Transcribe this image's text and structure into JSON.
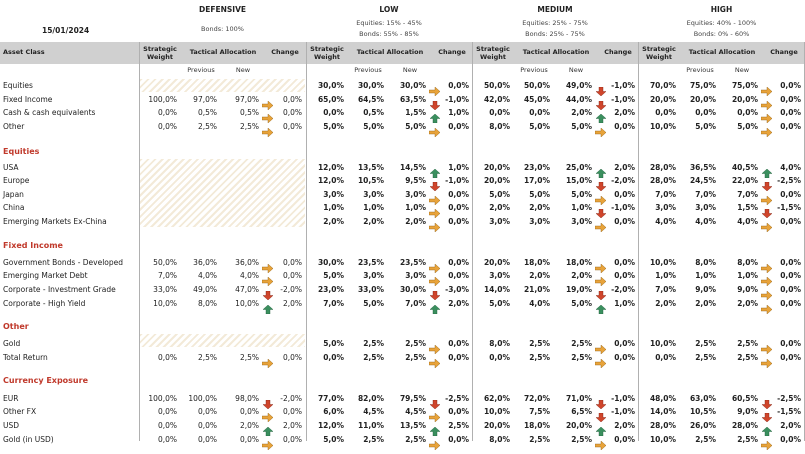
{
  "date": "15/01/2024",
  "asset_class_header": "Asset Class",
  "column_headers": {
    "strategic": "Strategic Weight",
    "tactical": "Tactical Allocation",
    "change": "Change",
    "previous": "Previous",
    "new": "New"
  },
  "profiles": [
    {
      "name": "DEFENSIVE",
      "desc": [
        "Bonds: 100%"
      ]
    },
    {
      "name": "LOW",
      "desc": [
        "Equities: 15% - 45%",
        "Bonds: 55% - 85%"
      ]
    },
    {
      "name": "MEDIUM",
      "desc": [
        "Equities: 25% - 75%",
        "Bonds: 25% - 75%"
      ]
    },
    {
      "name": "HIGH",
      "desc": [
        "Equities: 40% - 100%",
        "Bonds: 0% - 60%"
      ]
    }
  ],
  "sections": {
    "equities": "Equities",
    "fixed_income": "Fixed Income",
    "other": "Other",
    "currency": "Currency Exposure"
  },
  "colors": {
    "up": "#3a8f5e",
    "down": "#d0452b",
    "flat": "#e8a33a",
    "section": "#c0392b",
    "header_bar": "#d0d0d0"
  },
  "rows": [
    {
      "label": "Equities",
      "y": 0,
      "cells": [
        null,
        [
          "30,0%",
          "30,0%",
          "30,0%",
          "flat",
          "0,0%"
        ],
        [
          "50,0%",
          "50,0%",
          "49,0%",
          "down",
          "-1,0%"
        ],
        [
          "70,0%",
          "75,0%",
          "75,0%",
          "flat",
          "0,0%"
        ]
      ]
    },
    {
      "label": "Fixed Income",
      "y": 1,
      "cells": [
        [
          "100,0%",
          "97,0%",
          "97,0%",
          "flat",
          "0,0%"
        ],
        [
          "65,0%",
          "64,5%",
          "63,5%",
          "down",
          "-1,0%"
        ],
        [
          "42,0%",
          "45,0%",
          "44,0%",
          "down",
          "-1,0%"
        ],
        [
          "20,0%",
          "20,0%",
          "20,0%",
          "flat",
          "0,0%"
        ]
      ]
    },
    {
      "label": "Cash & cash equivalents",
      "y": 2,
      "cells": [
        [
          "0,0%",
          "0,5%",
          "0,5%",
          "flat",
          "0,0%"
        ],
        [
          "0,0%",
          "0,5%",
          "1,5%",
          "up",
          "1,0%"
        ],
        [
          "0,0%",
          "0,0%",
          "2,0%",
          "up",
          "2,0%"
        ],
        [
          "0,0%",
          "0,0%",
          "0,0%",
          "flat",
          "0,0%"
        ]
      ]
    },
    {
      "label": "Other",
      "y": 3,
      "cells": [
        [
          "0,0%",
          "2,5%",
          "2,5%",
          "flat",
          "0,0%"
        ],
        [
          "5,0%",
          "5,0%",
          "5,0%",
          "flat",
          "0,0%"
        ],
        [
          "8,0%",
          "5,0%",
          "5,0%",
          "flat",
          "0,0%"
        ],
        [
          "10,0%",
          "5,0%",
          "5,0%",
          "flat",
          "0,0%"
        ]
      ]
    },
    {
      "label": "USA",
      "y": 6,
      "cells": [
        null,
        [
          "12,0%",
          "13,5%",
          "14,5%",
          "up",
          "1,0%"
        ],
        [
          "20,0%",
          "23,0%",
          "25,0%",
          "up",
          "2,0%"
        ],
        [
          "28,0%",
          "36,5%",
          "40,5%",
          "up",
          "4,0%"
        ]
      ]
    },
    {
      "label": "Europe",
      "y": 7,
      "cells": [
        null,
        [
          "12,0%",
          "10,5%",
          "9,5%",
          "down",
          "-1,0%"
        ],
        [
          "20,0%",
          "17,0%",
          "15,0%",
          "down",
          "-2,0%"
        ],
        [
          "28,0%",
          "24,5%",
          "22,0%",
          "down",
          "-2,5%"
        ]
      ]
    },
    {
      "label": "Japan",
      "y": 8,
      "cells": [
        null,
        [
          "3,0%",
          "3,0%",
          "3,0%",
          "flat",
          "0,0%"
        ],
        [
          "5,0%",
          "5,0%",
          "5,0%",
          "flat",
          "0,0%"
        ],
        [
          "7,0%",
          "7,0%",
          "7,0%",
          "flat",
          "0,0%"
        ]
      ]
    },
    {
      "label": "China",
      "y": 9,
      "cells": [
        null,
        [
          "1,0%",
          "1,0%",
          "1,0%",
          "flat",
          "0,0%"
        ],
        [
          "2,0%",
          "2,0%",
          "1,0%",
          "down",
          "-1,0%"
        ],
        [
          "3,0%",
          "3,0%",
          "1,5%",
          "down",
          "-1,5%"
        ]
      ]
    },
    {
      "label": "Emerging Markets Ex-China",
      "y": 10,
      "cells": [
        null,
        [
          "2,0%",
          "2,0%",
          "2,0%",
          "flat",
          "0,0%"
        ],
        [
          "3,0%",
          "3,0%",
          "3,0%",
          "flat",
          "0,0%"
        ],
        [
          "4,0%",
          "4,0%",
          "4,0%",
          "flat",
          "0,0%"
        ]
      ]
    },
    {
      "label": "Government Bonds - Developed",
      "y": 13,
      "cells": [
        [
          "50,0%",
          "36,0%",
          "36,0%",
          "flat",
          "0,0%"
        ],
        [
          "30,0%",
          "23,5%",
          "23,5%",
          "flat",
          "0,0%"
        ],
        [
          "20,0%",
          "18,0%",
          "18,0%",
          "flat",
          "0,0%"
        ],
        [
          "10,0%",
          "8,0%",
          "8,0%",
          "flat",
          "0,0%"
        ]
      ]
    },
    {
      "label": "Emerging Market Debt",
      "y": 14,
      "cells": [
        [
          "7,0%",
          "4,0%",
          "4,0%",
          "flat",
          "0,0%"
        ],
        [
          "5,0%",
          "3,0%",
          "3,0%",
          "flat",
          "0,0%"
        ],
        [
          "3,0%",
          "2,0%",
          "2,0%",
          "flat",
          "0,0%"
        ],
        [
          "1,0%",
          "1,0%",
          "1,0%",
          "flat",
          "0,0%"
        ]
      ]
    },
    {
      "label": "Corporate - Investment Grade",
      "y": 15,
      "cells": [
        [
          "33,0%",
          "49,0%",
          "47,0%",
          "down",
          "-2,0%"
        ],
        [
          "23,0%",
          "33,0%",
          "30,0%",
          "down",
          "-3,0%"
        ],
        [
          "14,0%",
          "21,0%",
          "19,0%",
          "down",
          "-2,0%"
        ],
        [
          "7,0%",
          "9,0%",
          "9,0%",
          "flat",
          "0,0%"
        ]
      ]
    },
    {
      "label": "Corporate - High Yield",
      "y": 16,
      "cells": [
        [
          "10,0%",
          "8,0%",
          "10,0%",
          "up",
          "2,0%"
        ],
        [
          "7,0%",
          "5,0%",
          "7,0%",
          "up",
          "2,0%"
        ],
        [
          "5,0%",
          "4,0%",
          "5,0%",
          "up",
          "1,0%"
        ],
        [
          "2,0%",
          "2,0%",
          "2,0%",
          "flat",
          "0,0%"
        ]
      ]
    },
    {
      "label": "Gold",
      "y": 19,
      "cells": [
        null,
        [
          "5,0%",
          "2,5%",
          "2,5%",
          "flat",
          "0,0%"
        ],
        [
          "8,0%",
          "2,5%",
          "2,5%",
          "flat",
          "0,0%"
        ],
        [
          "10,0%",
          "2,5%",
          "2,5%",
          "flat",
          "0,0%"
        ]
      ]
    },
    {
      "label": "Total Return",
      "y": 20,
      "cells": [
        [
          "0,0%",
          "2,5%",
          "2,5%",
          "flat",
          "0,0%"
        ],
        [
          "0,0%",
          "2,5%",
          "2,5%",
          "flat",
          "0,0%"
        ],
        [
          "0,0%",
          "2,5%",
          "2,5%",
          "flat",
          "0,0%"
        ],
        [
          "0,0%",
          "2,5%",
          "2,5%",
          "flat",
          "0,0%"
        ]
      ]
    },
    {
      "label": "EUR",
      "y": 23,
      "cells": [
        [
          "100,0%",
          "100,0%",
          "98,0%",
          "down",
          "-2,0%"
        ],
        [
          "77,0%",
          "82,0%",
          "79,5%",
          "down",
          "-2,5%"
        ],
        [
          "62,0%",
          "72,0%",
          "71,0%",
          "down",
          "-1,0%"
        ],
        [
          "48,0%",
          "63,0%",
          "60,5%",
          "down",
          "-2,5%"
        ]
      ]
    },
    {
      "label": "Other FX",
      "y": 24,
      "cells": [
        [
          "0,0%",
          "0,0%",
          "0,0%",
          "flat",
          "0,0%"
        ],
        [
          "6,0%",
          "4,5%",
          "4,5%",
          "flat",
          "0,0%"
        ],
        [
          "10,0%",
          "7,5%",
          "6,5%",
          "down",
          "-1,0%"
        ],
        [
          "14,0%",
          "10,5%",
          "9,0%",
          "down",
          "-1,5%"
        ]
      ]
    },
    {
      "label": "USD",
      "y": 25,
      "cells": [
        [
          "0,0%",
          "0,0%",
          "2,0%",
          "up",
          "2,0%"
        ],
        [
          "12,0%",
          "11,0%",
          "13,5%",
          "up",
          "2,5%"
        ],
        [
          "20,0%",
          "18,0%",
          "20,0%",
          "up",
          "2,0%"
        ],
        [
          "28,0%",
          "26,0%",
          "28,0%",
          "up",
          "2,0%"
        ]
      ]
    },
    {
      "label": "Gold (in USD)",
      "y": 26,
      "cells": [
        [
          "0,0%",
          "0,0%",
          "0,0%",
          "flat",
          "0,0%"
        ],
        [
          "5,0%",
          "2,5%",
          "2,5%",
          "flat",
          "0,0%"
        ],
        [
          "8,0%",
          "2,5%",
          "2,5%",
          "flat",
          "0,0%"
        ],
        [
          "10,0%",
          "2,5%",
          "2,5%",
          "flat",
          "0,0%"
        ]
      ]
    }
  ]
}
